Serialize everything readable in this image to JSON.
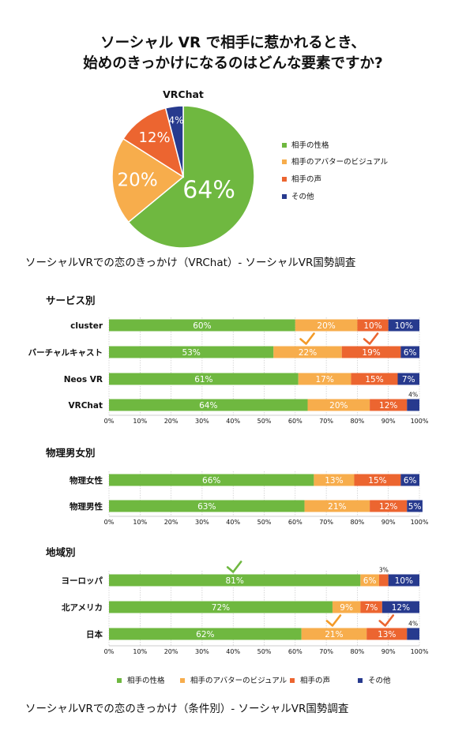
{
  "title_line1": "ソーシャル VR で相手に惹かれるとき、",
  "title_line2": "始めのきっかけになるのはどんな要素ですか?",
  "colors": {
    "personality": "#6fb840",
    "avatar": "#f7ad4c",
    "voice": "#ec6530",
    "other": "#273a8e"
  },
  "legend": [
    "相手の性格",
    "相手のアバターのビジュアル",
    "相手の声",
    "その他"
  ],
  "caption1": "ソーシャルVRでの恋のきっかけ（VRChat）- ソーシャルVR国勢調査",
  "caption2": "ソーシャルVRでの恋のきっかけ（条件別）- ソーシャルVR国勢調査",
  "chart_data": [
    {
      "type": "pie",
      "title": "VRChat",
      "labels": [
        "相手の性格",
        "相手のアバターのビジュアル",
        "相手の声",
        "その他"
      ],
      "values": [
        64,
        20,
        12,
        4
      ],
      "value_labels": [
        "64%",
        "20%",
        "12%",
        "4%"
      ]
    },
    {
      "type": "bar",
      "stacked": true,
      "orientation": "horizontal",
      "title": "サービス別",
      "categories": [
        "cluster",
        "バーチャルキャスト",
        "Neos VR",
        "VRChat"
      ],
      "series": [
        {
          "name": "相手の性格",
          "values": [
            60,
            53,
            61,
            64
          ]
        },
        {
          "name": "相手のアバターのビジュアル",
          "values": [
            20,
            22,
            17,
            20
          ]
        },
        {
          "name": "相手の声",
          "values": [
            10,
            19,
            15,
            12
          ]
        },
        {
          "name": "その他",
          "values": [
            10,
            6,
            7,
            4
          ]
        }
      ],
      "xlim": [
        0,
        100
      ],
      "xticks": [
        "0%",
        "10%",
        "20%",
        "30%",
        "40%",
        "50%",
        "60%",
        "70%",
        "80%",
        "90%",
        "100%"
      ],
      "checkmarks": [
        {
          "category": "バーチャルキャスト",
          "series": [
            "相手のアバターのビジュアル",
            "相手の声"
          ]
        }
      ]
    },
    {
      "type": "bar",
      "stacked": true,
      "orientation": "horizontal",
      "title": "物理男女別",
      "categories": [
        "物理女性",
        "物理男性"
      ],
      "series": [
        {
          "name": "相手の性格",
          "values": [
            66,
            63
          ]
        },
        {
          "name": "相手のアバターのビジュアル",
          "values": [
            13,
            21
          ]
        },
        {
          "name": "相手の声",
          "values": [
            15,
            12
          ]
        },
        {
          "name": "その他",
          "values": [
            6,
            5
          ]
        }
      ],
      "xlim": [
        0,
        100
      ],
      "xticks": [
        "0%",
        "10%",
        "20%",
        "30%",
        "40%",
        "50%",
        "60%",
        "70%",
        "80%",
        "90%",
        "100%"
      ]
    },
    {
      "type": "bar",
      "stacked": true,
      "orientation": "horizontal",
      "title": "地域別",
      "categories": [
        "ヨーロッパ",
        "北アメリカ",
        "日本"
      ],
      "series": [
        {
          "name": "相手の性格",
          "values": [
            81,
            72,
            62
          ]
        },
        {
          "name": "相手のアバターのビジュアル",
          "values": [
            6,
            9,
            21
          ]
        },
        {
          "name": "相手の声",
          "values": [
            3,
            7,
            13
          ]
        },
        {
          "name": "その他",
          "values": [
            10,
            12,
            4
          ]
        }
      ],
      "xlim": [
        0,
        100
      ],
      "xticks": [
        "0%",
        "10%",
        "20%",
        "30%",
        "40%",
        "50%",
        "60%",
        "70%",
        "80%",
        "90%",
        "100%"
      ],
      "checkmarks": [
        {
          "category": "ヨーロッパ",
          "series": [
            "相手の性格"
          ]
        },
        {
          "category": "日本",
          "series": [
            "相手のアバターのビジュアル",
            "相手の声"
          ]
        }
      ]
    }
  ]
}
